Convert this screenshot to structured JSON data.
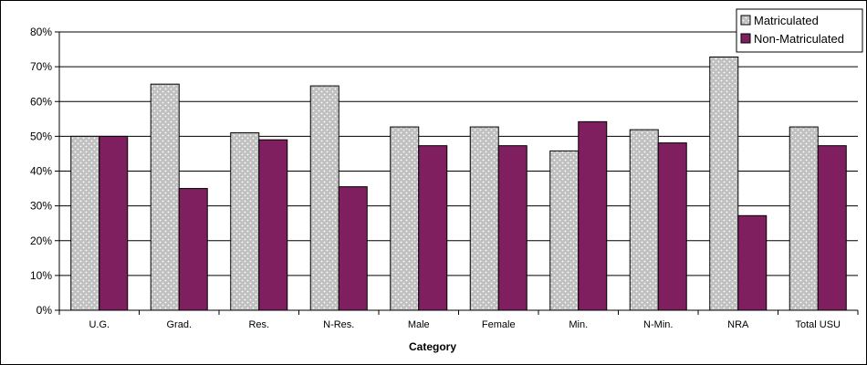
{
  "chart_data": {
    "type": "bar",
    "title": "",
    "xlabel": "Category",
    "ylabel": "",
    "categories": [
      "U.G.",
      "Grad.",
      "Res.",
      "N-Res.",
      "Male",
      "Female",
      "Min.",
      "N-Min.",
      "NRA",
      "Total USU"
    ],
    "series": [
      {
        "name": "Matriculated",
        "values": [
          50,
          65,
          51,
          64.5,
          52.7,
          52.7,
          45.8,
          51.9,
          72.8,
          52.7
        ],
        "color": "#c0c0c0",
        "pattern": "dotted"
      },
      {
        "name": "Non-Matriculated",
        "values": [
          50,
          35,
          49,
          35.5,
          47.3,
          47.3,
          54.2,
          48.1,
          27.2,
          47.3
        ],
        "color": "#7f1f5f"
      }
    ],
    "ylim": [
      0,
      80
    ],
    "yticks": [
      0,
      10,
      20,
      30,
      40,
      50,
      60,
      70,
      80
    ],
    "ytick_labels": [
      "0%",
      "10%",
      "20%",
      "30%",
      "40%",
      "50%",
      "60%",
      "70%",
      "80%"
    ],
    "grid": true,
    "legend_position": "top-right"
  }
}
